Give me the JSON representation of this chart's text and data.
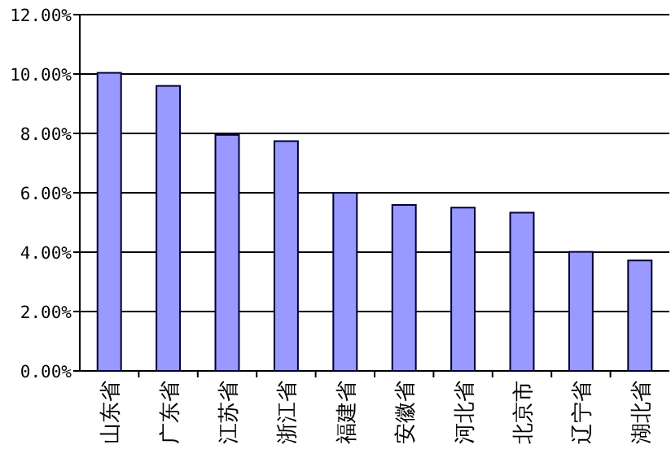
{
  "chart_data": {
    "type": "bar",
    "categories": [
      "山东省",
      "广东省",
      "江苏省",
      "浙江省",
      "福建省",
      "安徽省",
      "河北省",
      "北京市",
      "辽宁省",
      "湖北省"
    ],
    "values": [
      10.04,
      9.6,
      7.95,
      7.74,
      6.0,
      5.59,
      5.5,
      5.33,
      4.01,
      3.72
    ],
    "color": "#9999ff",
    "ylim": [
      0,
      12
    ],
    "yticks": [
      {
        "value": 0,
        "label": "0.00%"
      },
      {
        "value": 2,
        "label": "2.00%"
      },
      {
        "value": 4,
        "label": "4.00%"
      },
      {
        "value": 6,
        "label": "6.00%"
      },
      {
        "value": 8,
        "label": "8.00%"
      },
      {
        "value": 10,
        "label": "10.00%"
      },
      {
        "value": 12,
        "label": "12.00%"
      }
    ],
    "grid": "y"
  }
}
